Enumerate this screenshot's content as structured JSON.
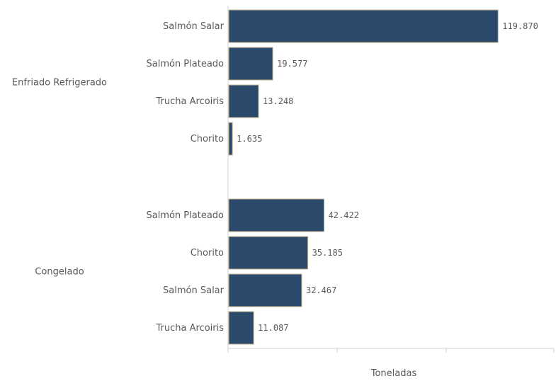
{
  "chart_data": {
    "type": "bar",
    "orientation": "horizontal",
    "title": "",
    "xlabel": "Toneladas",
    "ylabel": "",
    "xlim": [
      0,
      145000
    ],
    "grid": false,
    "bar_color": "#2b4a6b",
    "groups": [
      {
        "name": "Enfriado Refrigerado",
        "categories": [
          "Salmón Salar",
          "Salmón Plateado",
          "Trucha Arcoiris",
          "Chorito"
        ],
        "values": [
          119870,
          19577,
          13248,
          1635
        ],
        "labels": [
          "119.870",
          "19.577",
          "13.248",
          "1.635"
        ]
      },
      {
        "name": "Congelado",
        "categories": [
          "Salmón Plateado",
          "Chorito",
          "Salmón Salar",
          "Trucha Arcoiris"
        ],
        "values": [
          42422,
          35185,
          32467,
          11087
        ],
        "labels": [
          "42.422",
          "35.185",
          "32.467",
          "11.087"
        ]
      }
    ]
  }
}
